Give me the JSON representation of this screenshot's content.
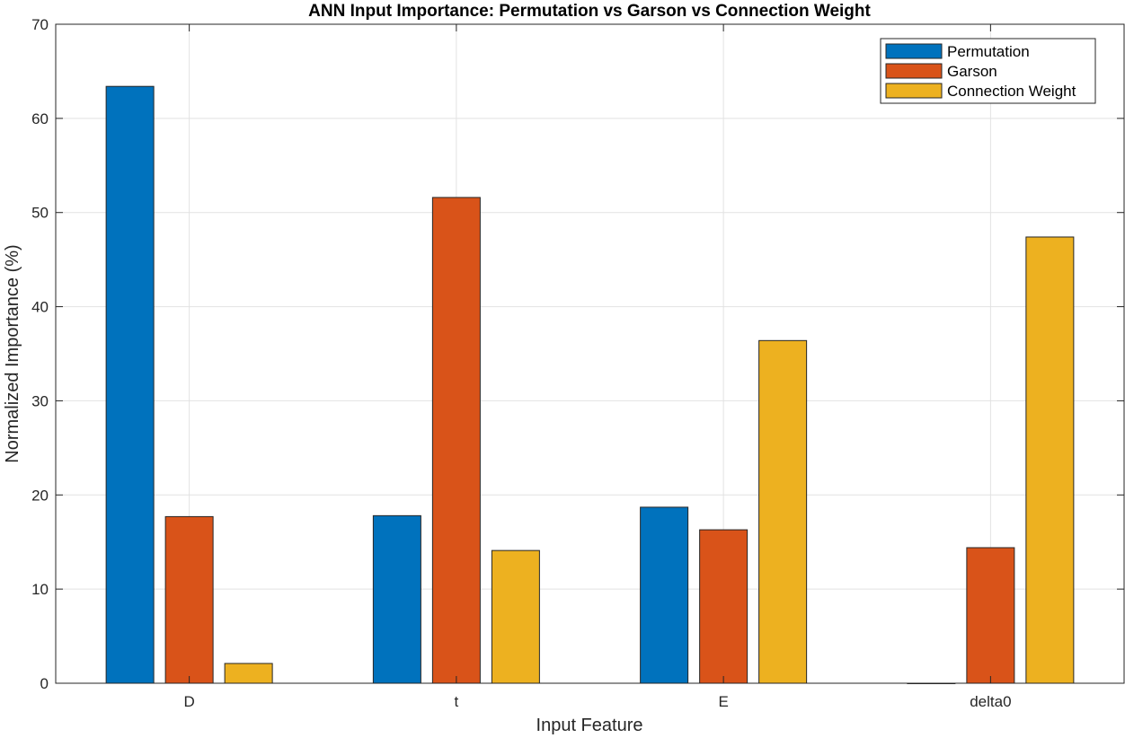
{
  "chart_data": {
    "type": "bar",
    "title": "ANN Input Importance: Permutation vs Garson vs Connection Weight",
    "xlabel": "Input Feature",
    "ylabel": "Normalized Importance (%)",
    "categories": [
      "D",
      "t",
      "E",
      "delta0"
    ],
    "ylim": [
      0,
      70
    ],
    "yticks": [
      0,
      10,
      20,
      30,
      40,
      50,
      60,
      70
    ],
    "grid": true,
    "legend_position": "top-right",
    "series": [
      {
        "name": "Permutation",
        "color": "#0072BD",
        "values": [
          63.4,
          17.8,
          18.7,
          0.0
        ]
      },
      {
        "name": "Garson",
        "color": "#D95319",
        "values": [
          17.7,
          51.6,
          16.3,
          14.4
        ]
      },
      {
        "name": "Connection Weight",
        "color": "#EDB120",
        "values": [
          2.1,
          14.1,
          36.4,
          47.4
        ]
      }
    ]
  }
}
